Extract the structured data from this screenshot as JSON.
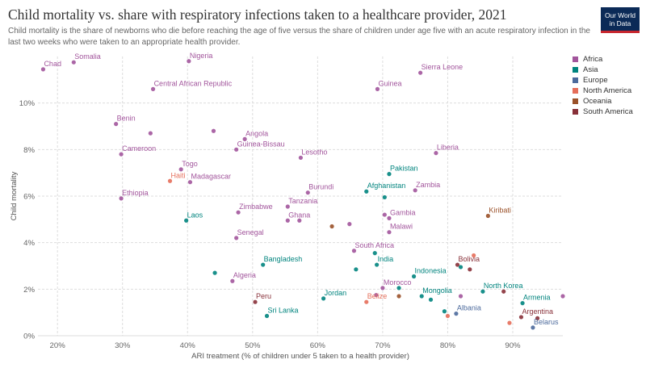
{
  "header": {
    "title": "Child mortality vs. share with respiratory infections taken to a healthcare provider, 2021",
    "subtitle": "Child mortality is the share of newborns who die before reaching the age of five versus the share of children under age five with an acute respiratory infection in the last two weeks who were taken to an appropriate health provider.",
    "logo_line1": "Our World",
    "logo_line2": "in Data",
    "logo_bg": "#0b2a57",
    "logo_accent": "#c8262e"
  },
  "chart_data": {
    "type": "scatter",
    "title": "Child mortality vs. share with respiratory infections taken to a healthcare provider, 2021",
    "xlabel": "ARI treatment (% of children under 5 taken to a health provider)",
    "ylabel": "Child mortality",
    "xlim": [
      17,
      97.7
    ],
    "ylim": [
      0,
      12
    ],
    "xticks": [
      20,
      30,
      40,
      50,
      60,
      70,
      80,
      90
    ],
    "yticks": [
      0,
      2,
      4,
      6,
      8,
      10
    ],
    "x_tick_labels": [
      "20%",
      "30%",
      "40%",
      "50%",
      "60%",
      "70%",
      "80%",
      "90%"
    ],
    "y_tick_labels": [
      "0%",
      "2%",
      "4%",
      "6%",
      "8%",
      "10%"
    ],
    "grid": true,
    "legend_position": "right",
    "regions": [
      {
        "name": "Africa",
        "color": "#a2559c"
      },
      {
        "name": "Asia",
        "color": "#00847e"
      },
      {
        "name": "Europe",
        "color": "#4c6a9c"
      },
      {
        "name": "North America",
        "color": "#e56e5a"
      },
      {
        "name": "Oceania",
        "color": "#9a5129"
      },
      {
        "name": "South America",
        "color": "#883039"
      }
    ],
    "points": [
      {
        "label": "Chad",
        "x": 17.8,
        "y": 11.45,
        "region": "Africa"
      },
      {
        "label": "Somalia",
        "x": 22.5,
        "y": 11.75,
        "region": "Africa"
      },
      {
        "label": "Nigeria",
        "x": 40.2,
        "y": 11.8,
        "region": "Africa"
      },
      {
        "label": "Central African Republic",
        "x": 34.7,
        "y": 10.6,
        "region": "Africa"
      },
      {
        "label": "Sierra Leone",
        "x": 75.8,
        "y": 11.3,
        "region": "Africa"
      },
      {
        "label": "Guinea",
        "x": 69.2,
        "y": 10.6,
        "region": "Africa"
      },
      {
        "label": "Benin",
        "x": 29.0,
        "y": 9.1,
        "region": "Africa"
      },
      {
        "label": "",
        "x": 34.3,
        "y": 8.7,
        "region": "Africa"
      },
      {
        "label": "",
        "x": 44.0,
        "y": 8.8,
        "region": "Africa"
      },
      {
        "label": "Angola",
        "x": 48.8,
        "y": 8.45,
        "region": "Africa"
      },
      {
        "label": "Guinea-Bissau",
        "x": 47.5,
        "y": 8.0,
        "region": "Africa"
      },
      {
        "label": "Cameroon",
        "x": 29.8,
        "y": 7.8,
        "region": "Africa"
      },
      {
        "label": "Lesotho",
        "x": 57.4,
        "y": 7.65,
        "region": "Africa"
      },
      {
        "label": "Liberia",
        "x": 78.2,
        "y": 7.85,
        "region": "Africa"
      },
      {
        "label": "Togo",
        "x": 39.0,
        "y": 7.15,
        "region": "Africa"
      },
      {
        "label": "Madagascar",
        "x": 40.4,
        "y": 6.6,
        "region": "Africa"
      },
      {
        "label": "Haiti",
        "x": 37.3,
        "y": 6.65,
        "region": "North America"
      },
      {
        "label": "Pakistan",
        "x": 71.0,
        "y": 6.95,
        "region": "Asia"
      },
      {
        "label": "Ethiopia",
        "x": 29.8,
        "y": 5.9,
        "region": "Africa"
      },
      {
        "label": "Burundi",
        "x": 58.5,
        "y": 6.15,
        "region": "Africa"
      },
      {
        "label": "Afghanistan",
        "x": 67.5,
        "y": 6.2,
        "region": "Asia"
      },
      {
        "label": "",
        "x": 70.3,
        "y": 5.95,
        "region": "Asia"
      },
      {
        "label": "Zambia",
        "x": 75.0,
        "y": 6.25,
        "region": "Africa"
      },
      {
        "label": "Tanzania",
        "x": 55.4,
        "y": 5.55,
        "region": "Africa"
      },
      {
        "label": "Zimbabwe",
        "x": 47.8,
        "y": 5.3,
        "region": "Africa"
      },
      {
        "label": "Laos",
        "x": 39.8,
        "y": 4.95,
        "region": "Asia"
      },
      {
        "label": "Ghana",
        "x": 55.4,
        "y": 4.95,
        "region": "Africa"
      },
      {
        "label": "",
        "x": 57.2,
        "y": 4.95,
        "region": "Africa"
      },
      {
        "label": "Gambia",
        "x": 71.0,
        "y": 5.05,
        "region": "Africa"
      },
      {
        "label": "",
        "x": 70.3,
        "y": 5.2,
        "region": "Africa"
      },
      {
        "label": "",
        "x": 64.9,
        "y": 4.8,
        "region": "Africa"
      },
      {
        "label": "",
        "x": 62.2,
        "y": 4.7,
        "region": "Oceania"
      },
      {
        "label": "Kiribati",
        "x": 86.2,
        "y": 5.15,
        "region": "Oceania"
      },
      {
        "label": "Malawi",
        "x": 71.0,
        "y": 4.45,
        "region": "Africa"
      },
      {
        "label": "Senegal",
        "x": 47.5,
        "y": 4.2,
        "region": "Africa"
      },
      {
        "label": "South Africa",
        "x": 65.6,
        "y": 3.65,
        "region": "Africa"
      },
      {
        "label": "",
        "x": 68.8,
        "y": 3.55,
        "region": "Asia"
      },
      {
        "label": "India",
        "x": 69.1,
        "y": 3.05,
        "region": "Asia"
      },
      {
        "label": "",
        "x": 65.9,
        "y": 2.85,
        "region": "Asia"
      },
      {
        "label": "Bolivia",
        "x": 81.5,
        "y": 3.05,
        "region": "South America"
      },
      {
        "label": "",
        "x": 82.0,
        "y": 2.95,
        "region": "Asia"
      },
      {
        "label": "",
        "x": 84.0,
        "y": 3.45,
        "region": "North America"
      },
      {
        "label": "",
        "x": 83.4,
        "y": 2.85,
        "region": "South America"
      },
      {
        "label": "Bangladesh",
        "x": 51.6,
        "y": 3.05,
        "region": "Asia"
      },
      {
        "label": "",
        "x": 44.2,
        "y": 2.7,
        "region": "Asia"
      },
      {
        "label": "Algeria",
        "x": 46.9,
        "y": 2.35,
        "region": "Africa"
      },
      {
        "label": "Indonesia",
        "x": 74.8,
        "y": 2.55,
        "region": "Asia"
      },
      {
        "label": "Morocco",
        "x": 70.0,
        "y": 2.05,
        "region": "Africa"
      },
      {
        "label": "",
        "x": 72.5,
        "y": 2.05,
        "region": "Asia"
      },
      {
        "label": "",
        "x": 69.0,
        "y": 1.75,
        "region": "Africa"
      },
      {
        "label": "",
        "x": 72.5,
        "y": 1.7,
        "region": "Oceania"
      },
      {
        "label": "Mongolia",
        "x": 76.0,
        "y": 1.7,
        "region": "Asia"
      },
      {
        "label": "",
        "x": 77.4,
        "y": 1.55,
        "region": "Asia"
      },
      {
        "label": "",
        "x": 82.0,
        "y": 1.7,
        "region": "Africa"
      },
      {
        "label": "North Korea",
        "x": 85.4,
        "y": 1.9,
        "region": "Asia"
      },
      {
        "label": "",
        "x": 88.6,
        "y": 1.9,
        "region": "South America"
      },
      {
        "label": "",
        "x": 97.7,
        "y": 1.7,
        "region": "Africa"
      },
      {
        "label": "Peru",
        "x": 50.4,
        "y": 1.45,
        "region": "South America"
      },
      {
        "label": "Jordan",
        "x": 60.9,
        "y": 1.6,
        "region": "Asia"
      },
      {
        "label": "Belize",
        "x": 67.5,
        "y": 1.45,
        "region": "North America"
      },
      {
        "label": "Armenia",
        "x": 91.5,
        "y": 1.4,
        "region": "Asia"
      },
      {
        "label": "Albania",
        "x": 81.3,
        "y": 0.95,
        "region": "Europe"
      },
      {
        "label": "",
        "x": 79.5,
        "y": 1.05,
        "region": "Asia"
      },
      {
        "label": "",
        "x": 80.0,
        "y": 0.85,
        "region": "North America"
      },
      {
        "label": "Sri Lanka",
        "x": 52.2,
        "y": 0.85,
        "region": "Asia"
      },
      {
        "label": "Argentina",
        "x": 91.3,
        "y": 0.8,
        "region": "South America"
      },
      {
        "label": "",
        "x": 93.8,
        "y": 0.75,
        "region": "South America"
      },
      {
        "label": "Belarus",
        "x": 93.1,
        "y": 0.35,
        "region": "Europe"
      },
      {
        "label": "",
        "x": 89.5,
        "y": 0.55,
        "region": "North America"
      }
    ]
  }
}
